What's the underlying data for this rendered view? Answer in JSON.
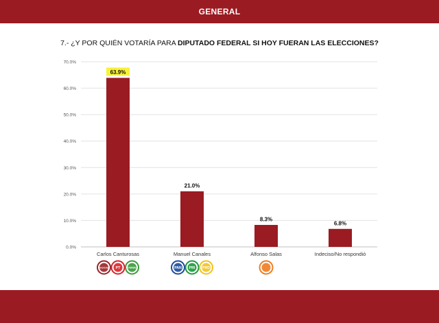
{
  "header": {
    "title": "GENERAL"
  },
  "question": {
    "prefix": "7.- ¿Y POR QUIÉN VOTARÍA PARA ",
    "emphasis": "DIPUTADO FEDERAL SI HOY FUERAN LAS ELECCIONES?"
  },
  "colors": {
    "band": "#9a1b22",
    "bar": "#9a1b22",
    "highlight": "#f7f23a"
  },
  "chart_data": {
    "type": "bar",
    "title": "",
    "xlabel": "",
    "ylabel": "",
    "ylim": [
      0,
      70
    ],
    "yticks": [
      0,
      10,
      20,
      30,
      40,
      50,
      60,
      70
    ],
    "ytick_labels": [
      "0.0%",
      "10.0%",
      "20.0%",
      "30.0%",
      "40.0%",
      "50.0%",
      "60.0%",
      "70.0%"
    ],
    "categories": [
      "Carlos Canturosas",
      "Manuel Canales",
      "Alfonso Salas",
      "Indeciso/No respondió"
    ],
    "values": [
      63.9,
      21.0,
      8.3,
      6.8
    ],
    "value_labels": [
      "63.9%",
      "21.0%",
      "8.3%",
      "6.8%"
    ],
    "highlighted_index": 0,
    "grid": true,
    "legend": "none",
    "party_logos": [
      [
        {
          "icon": "morena-logo-icon",
          "text": "morena",
          "color": "#9b2226"
        },
        {
          "icon": "pt-logo-icon",
          "text": "PT",
          "color": "#d8232a"
        },
        {
          "icon": "pvem-logo-icon",
          "text": "VERDE",
          "color": "#3a9a3a"
        }
      ],
      [
        {
          "icon": "pan-logo-icon",
          "text": "PAN",
          "color": "#1a4a9c"
        },
        {
          "icon": "pri-logo-icon",
          "text": "PRI",
          "color": "#1a9a3a"
        },
        {
          "icon": "prd-logo-icon",
          "text": "PRD",
          "color": "#f2c21b"
        }
      ],
      [
        {
          "icon": "mc-logo-icon",
          "text": "",
          "color": "#f07c1e"
        }
      ],
      []
    ]
  }
}
